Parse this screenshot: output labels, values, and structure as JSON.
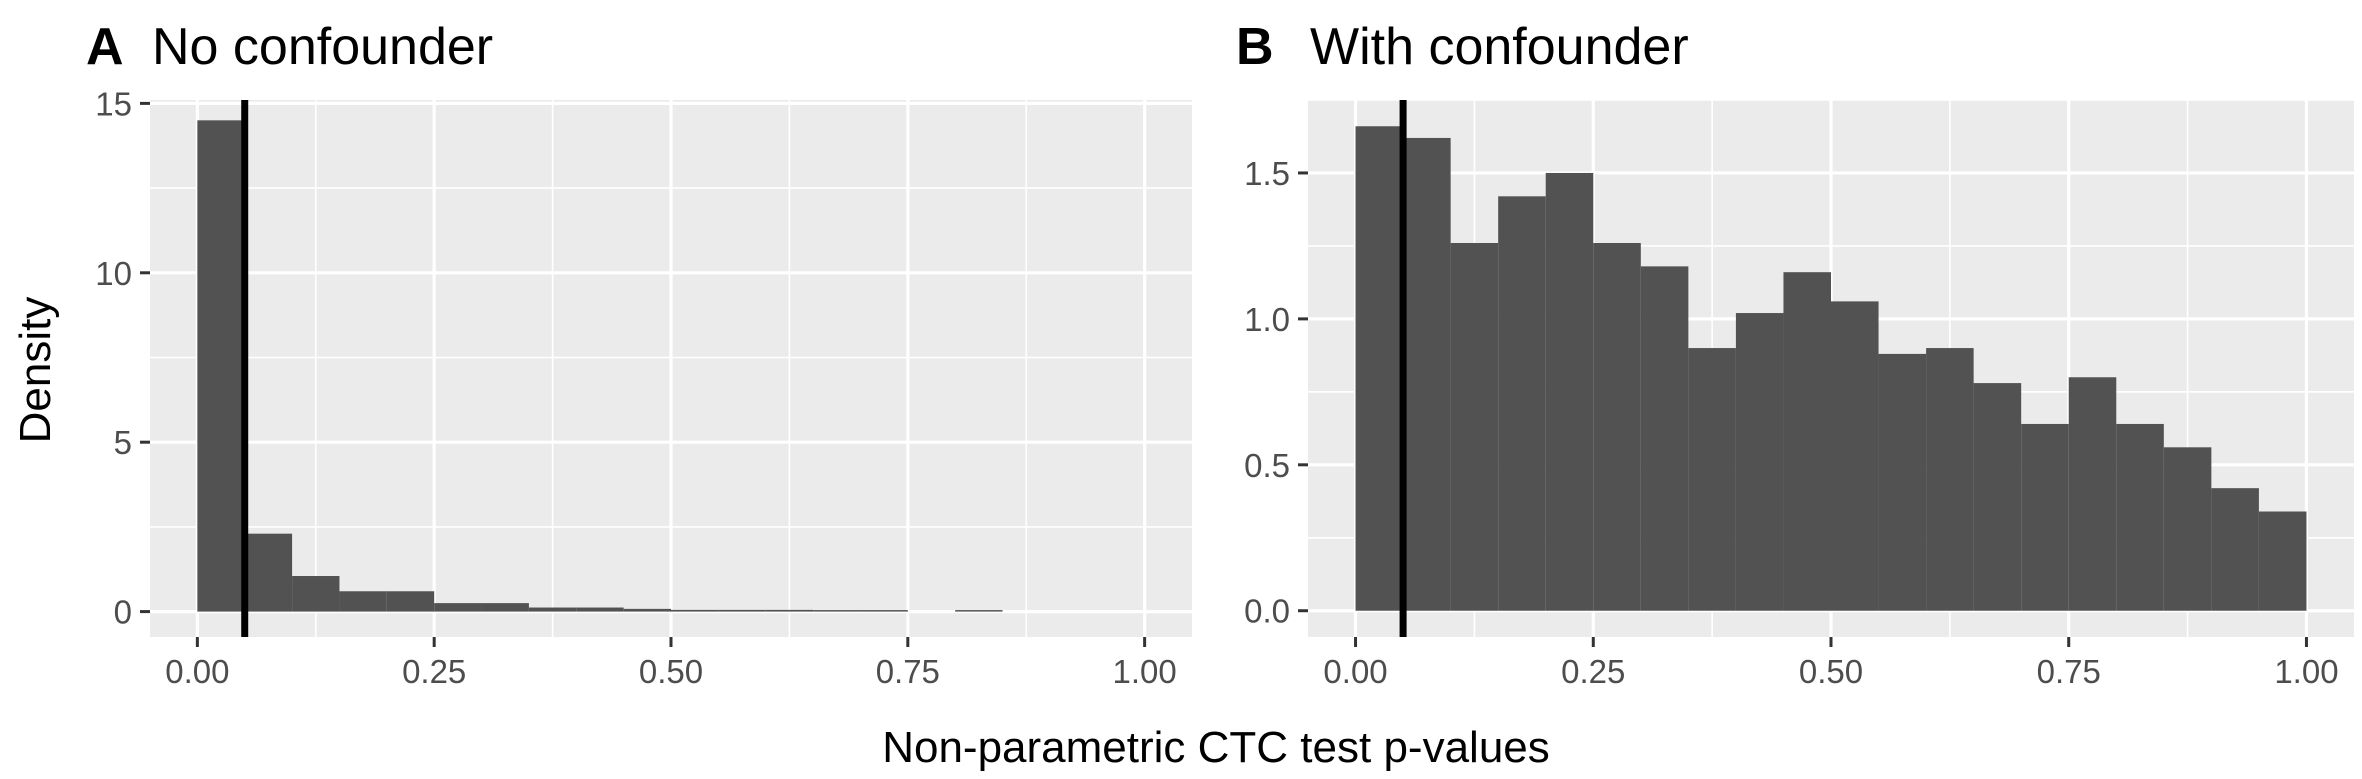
{
  "colors": {
    "panel_background": "#ebebeb",
    "grid": "#ffffff",
    "bar_fill": "#525252",
    "reference_line": "#000000"
  },
  "shared": {
    "ylabel": "Density",
    "xlabel": "Non-parametric CTC test p-values"
  },
  "chart_data": [
    {
      "type": "histogram",
      "tag": "A",
      "title": "No confounder",
      "xlim": [
        -0.05,
        1.05
      ],
      "ylim": [
        -0.75,
        15.1
      ],
      "x_ticks": [
        0,
        0.25,
        0.5,
        0.75,
        1
      ],
      "x_tick_labels": [
        "0.00",
        "0.25",
        "0.50",
        "0.75",
        "1.00"
      ],
      "y_ticks": [
        0,
        5,
        10,
        15
      ],
      "y_tick_labels": [
        "0",
        "5",
        "10",
        "15"
      ],
      "bin_width": 0.05,
      "bin_starts": [
        0,
        0.05,
        0.1,
        0.15,
        0.2,
        0.25,
        0.3,
        0.35,
        0.4,
        0.45,
        0.5,
        0.55,
        0.6,
        0.65,
        0.7,
        0.75,
        0.8,
        0.85,
        0.9,
        0.95
      ],
      "values": [
        14.5,
        2.3,
        1.05,
        0.6,
        0.6,
        0.25,
        0.25,
        0.12,
        0.12,
        0.08,
        0.05,
        0.05,
        0.05,
        0.04,
        0.03,
        0,
        0.04,
        0,
        0,
        0
      ],
      "reference_line_x": 0.05,
      "grid": true
    },
    {
      "type": "histogram",
      "tag": "B",
      "title": "With confounder",
      "xlim": [
        -0.05,
        1.05
      ],
      "ylim": [
        -0.09,
        1.75
      ],
      "x_ticks": [
        0,
        0.25,
        0.5,
        0.75,
        1
      ],
      "x_tick_labels": [
        "0.00",
        "0.25",
        "0.50",
        "0.75",
        "1.00"
      ],
      "y_ticks": [
        0,
        0.5,
        1,
        1.5
      ],
      "y_tick_labels": [
        "0.0",
        "0.5",
        "1.0",
        "1.5"
      ],
      "bin_width": 0.05,
      "bin_starts": [
        0,
        0.05,
        0.1,
        0.15,
        0.2,
        0.25,
        0.3,
        0.35,
        0.4,
        0.45,
        0.5,
        0.55,
        0.6,
        0.65,
        0.7,
        0.75,
        0.8,
        0.85,
        0.9,
        0.95
      ],
      "values": [
        1.66,
        1.62,
        1.26,
        1.42,
        1.5,
        1.26,
        1.18,
        0.9,
        1.02,
        1.16,
        1.06,
        0.88,
        0.9,
        0.78,
        0.64,
        0.8,
        0.64,
        0.56,
        0.42,
        0.34
      ],
      "reference_line_x": 0.05,
      "grid": true
    }
  ]
}
